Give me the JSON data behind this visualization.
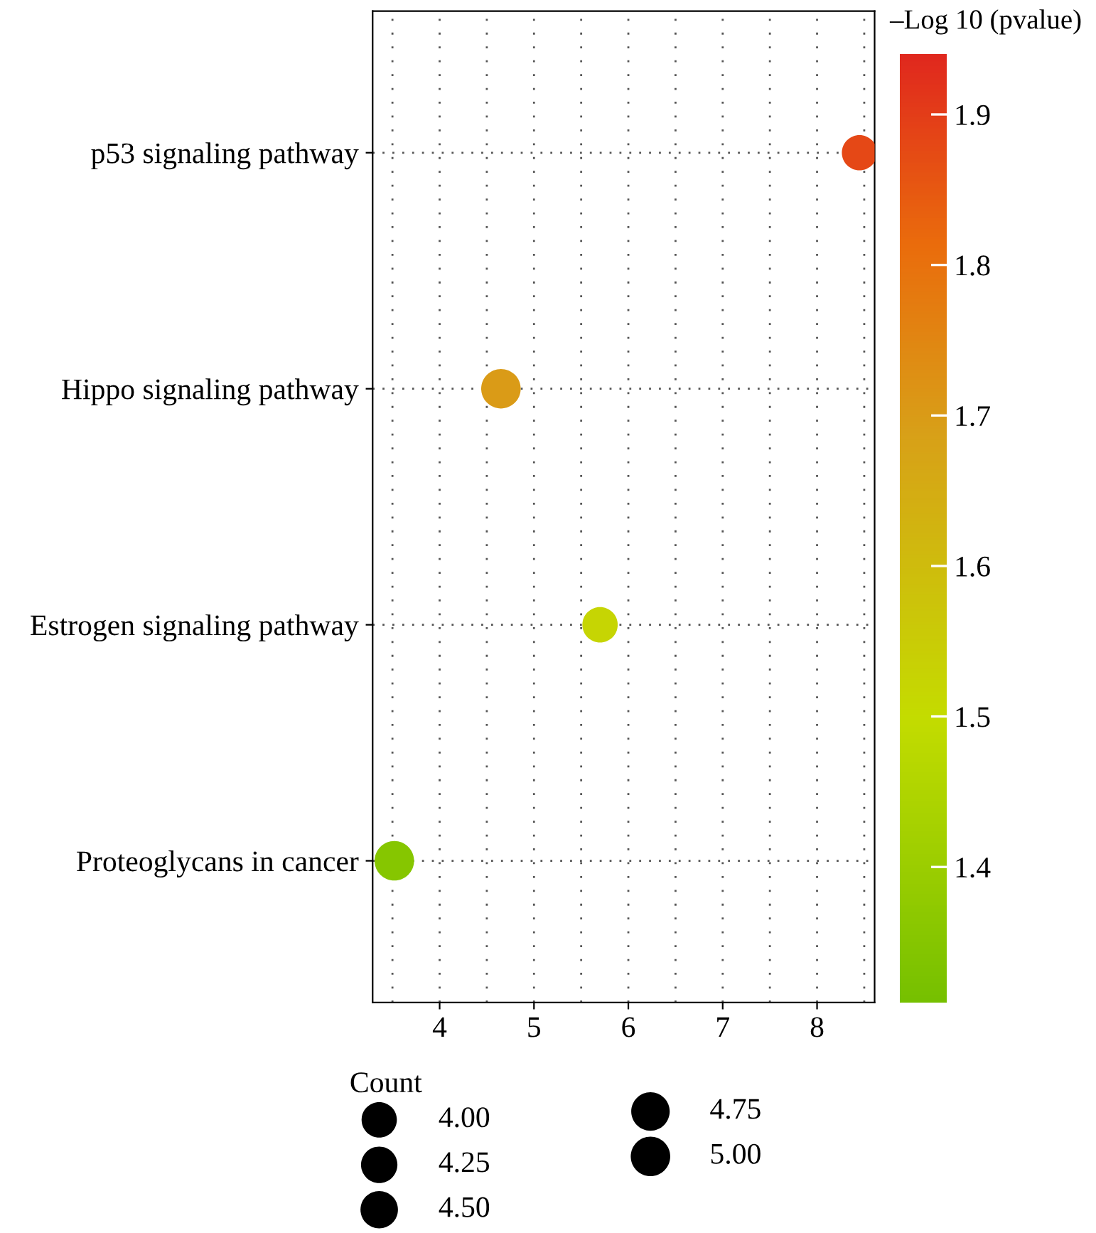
{
  "chart_data": {
    "type": "bubble",
    "categories": [
      "p53 signaling pathway",
      "Hippo signaling pathway",
      "Estrogen signaling pathway",
      "Proteoglycans in cancer"
    ],
    "orientation": "horizontal",
    "values": [
      8.45,
      4.65,
      5.7,
      3.52
    ],
    "sizes": [
      4,
      5,
      4,
      5
    ],
    "cvalues": [
      1.88,
      1.7,
      1.52,
      1.35
    ],
    "size_legend": [
      {
        "value": 4.0,
        "label": "4.00"
      },
      {
        "value": 4.25,
        "label": "4.25"
      },
      {
        "value": 4.5,
        "label": "4.50"
      },
      {
        "value": 4.75,
        "label": "4.75"
      },
      {
        "value": 5.0,
        "label": "5.00"
      }
    ],
    "legend_title": "Count",
    "clabel": "–Log 10 (pvalue)",
    "clim": [
      1.31,
      1.94
    ],
    "cticks": [
      {
        "value": 1.4,
        "label": "1.4"
      },
      {
        "value": 1.5,
        "label": "1.5"
      },
      {
        "value": 1.6,
        "label": "1.6"
      },
      {
        "value": 1.7,
        "label": "1.7"
      },
      {
        "value": 1.8,
        "label": "1.8"
      },
      {
        "value": 1.9,
        "label": "1.9"
      }
    ],
    "xlim": [
      3.29,
      8.61
    ],
    "xticks": [
      4,
      5,
      6,
      7,
      8
    ],
    "grid": true
  }
}
